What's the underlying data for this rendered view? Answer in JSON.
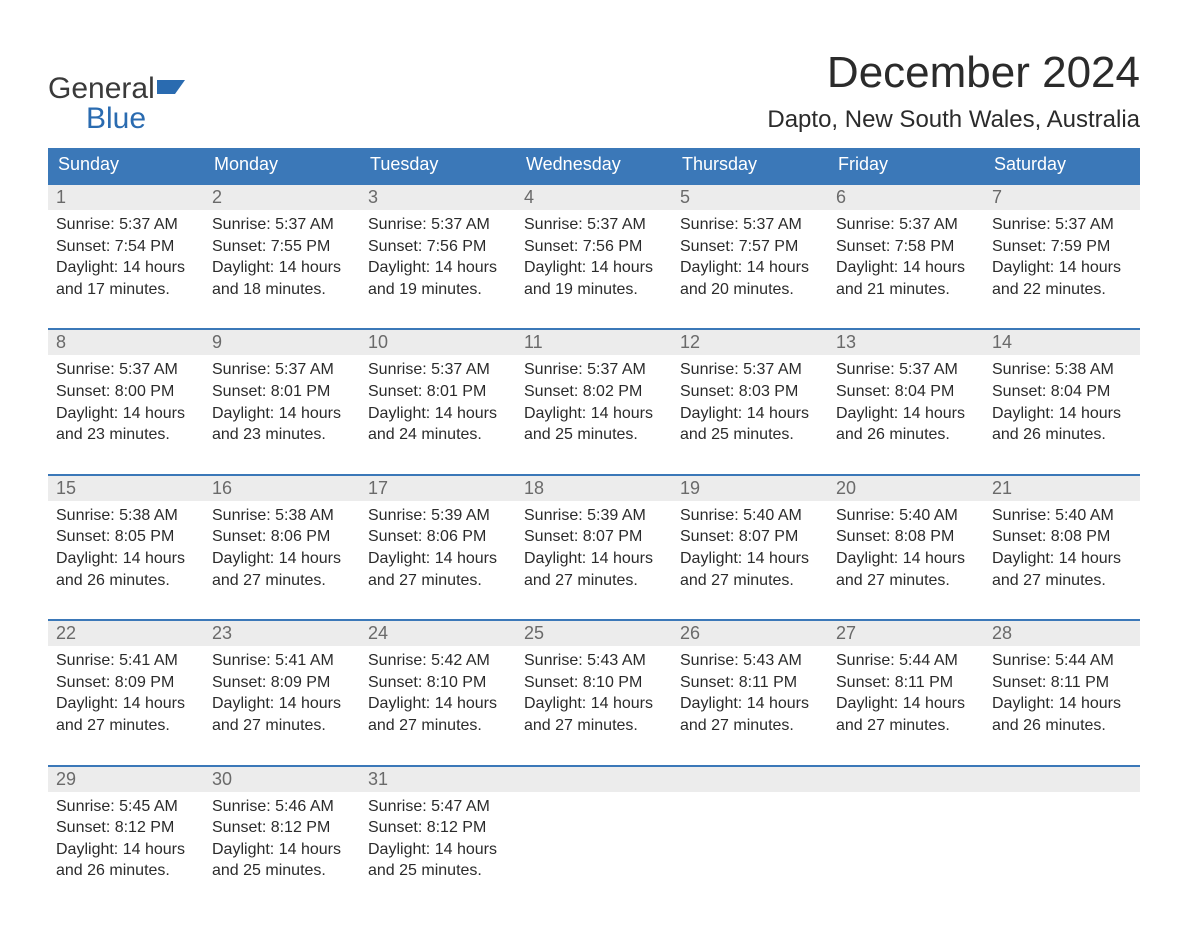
{
  "logo": {
    "word1": "General",
    "word2": "Blue"
  },
  "title": {
    "month": "December 2024",
    "location": "Dapto, New South Wales, Australia"
  },
  "colors": {
    "header_bg": "#3b78b8",
    "header_text": "#ffffff",
    "daynum_bg": "#ececec",
    "daynum_text": "#6a6a6a",
    "body_text": "#2b2b2b",
    "rule": "#3b78b8",
    "logo_blue": "#2a6bb0"
  },
  "layout": {
    "columns": 7,
    "daynum_fontsize": 18,
    "header_fontsize": 18,
    "cell_fontsize": 16,
    "title_fontsize": 44,
    "location_fontsize": 24
  },
  "weekdays": [
    "Sunday",
    "Monday",
    "Tuesday",
    "Wednesday",
    "Thursday",
    "Friday",
    "Saturday"
  ],
  "weeks": [
    [
      {
        "num": "1",
        "sunrise": "Sunrise: 5:37 AM",
        "sunset": "Sunset: 7:54 PM",
        "day1": "Daylight: 14 hours",
        "day2": "and 17 minutes."
      },
      {
        "num": "2",
        "sunrise": "Sunrise: 5:37 AM",
        "sunset": "Sunset: 7:55 PM",
        "day1": "Daylight: 14 hours",
        "day2": "and 18 minutes."
      },
      {
        "num": "3",
        "sunrise": "Sunrise: 5:37 AM",
        "sunset": "Sunset: 7:56 PM",
        "day1": "Daylight: 14 hours",
        "day2": "and 19 minutes."
      },
      {
        "num": "4",
        "sunrise": "Sunrise: 5:37 AM",
        "sunset": "Sunset: 7:56 PM",
        "day1": "Daylight: 14 hours",
        "day2": "and 19 minutes."
      },
      {
        "num": "5",
        "sunrise": "Sunrise: 5:37 AM",
        "sunset": "Sunset: 7:57 PM",
        "day1": "Daylight: 14 hours",
        "day2": "and 20 minutes."
      },
      {
        "num": "6",
        "sunrise": "Sunrise: 5:37 AM",
        "sunset": "Sunset: 7:58 PM",
        "day1": "Daylight: 14 hours",
        "day2": "and 21 minutes."
      },
      {
        "num": "7",
        "sunrise": "Sunrise: 5:37 AM",
        "sunset": "Sunset: 7:59 PM",
        "day1": "Daylight: 14 hours",
        "day2": "and 22 minutes."
      }
    ],
    [
      {
        "num": "8",
        "sunrise": "Sunrise: 5:37 AM",
        "sunset": "Sunset: 8:00 PM",
        "day1": "Daylight: 14 hours",
        "day2": "and 23 minutes."
      },
      {
        "num": "9",
        "sunrise": "Sunrise: 5:37 AM",
        "sunset": "Sunset: 8:01 PM",
        "day1": "Daylight: 14 hours",
        "day2": "and 23 minutes."
      },
      {
        "num": "10",
        "sunrise": "Sunrise: 5:37 AM",
        "sunset": "Sunset: 8:01 PM",
        "day1": "Daylight: 14 hours",
        "day2": "and 24 minutes."
      },
      {
        "num": "11",
        "sunrise": "Sunrise: 5:37 AM",
        "sunset": "Sunset: 8:02 PM",
        "day1": "Daylight: 14 hours",
        "day2": "and 25 minutes."
      },
      {
        "num": "12",
        "sunrise": "Sunrise: 5:37 AM",
        "sunset": "Sunset: 8:03 PM",
        "day1": "Daylight: 14 hours",
        "day2": "and 25 minutes."
      },
      {
        "num": "13",
        "sunrise": "Sunrise: 5:37 AM",
        "sunset": "Sunset: 8:04 PM",
        "day1": "Daylight: 14 hours",
        "day2": "and 26 minutes."
      },
      {
        "num": "14",
        "sunrise": "Sunrise: 5:38 AM",
        "sunset": "Sunset: 8:04 PM",
        "day1": "Daylight: 14 hours",
        "day2": "and 26 minutes."
      }
    ],
    [
      {
        "num": "15",
        "sunrise": "Sunrise: 5:38 AM",
        "sunset": "Sunset: 8:05 PM",
        "day1": "Daylight: 14 hours",
        "day2": "and 26 minutes."
      },
      {
        "num": "16",
        "sunrise": "Sunrise: 5:38 AM",
        "sunset": "Sunset: 8:06 PM",
        "day1": "Daylight: 14 hours",
        "day2": "and 27 minutes."
      },
      {
        "num": "17",
        "sunrise": "Sunrise: 5:39 AM",
        "sunset": "Sunset: 8:06 PM",
        "day1": "Daylight: 14 hours",
        "day2": "and 27 minutes."
      },
      {
        "num": "18",
        "sunrise": "Sunrise: 5:39 AM",
        "sunset": "Sunset: 8:07 PM",
        "day1": "Daylight: 14 hours",
        "day2": "and 27 minutes."
      },
      {
        "num": "19",
        "sunrise": "Sunrise: 5:40 AM",
        "sunset": "Sunset: 8:07 PM",
        "day1": "Daylight: 14 hours",
        "day2": "and 27 minutes."
      },
      {
        "num": "20",
        "sunrise": "Sunrise: 5:40 AM",
        "sunset": "Sunset: 8:08 PM",
        "day1": "Daylight: 14 hours",
        "day2": "and 27 minutes."
      },
      {
        "num": "21",
        "sunrise": "Sunrise: 5:40 AM",
        "sunset": "Sunset: 8:08 PM",
        "day1": "Daylight: 14 hours",
        "day2": "and 27 minutes."
      }
    ],
    [
      {
        "num": "22",
        "sunrise": "Sunrise: 5:41 AM",
        "sunset": "Sunset: 8:09 PM",
        "day1": "Daylight: 14 hours",
        "day2": "and 27 minutes."
      },
      {
        "num": "23",
        "sunrise": "Sunrise: 5:41 AM",
        "sunset": "Sunset: 8:09 PM",
        "day1": "Daylight: 14 hours",
        "day2": "and 27 minutes."
      },
      {
        "num": "24",
        "sunrise": "Sunrise: 5:42 AM",
        "sunset": "Sunset: 8:10 PM",
        "day1": "Daylight: 14 hours",
        "day2": "and 27 minutes."
      },
      {
        "num": "25",
        "sunrise": "Sunrise: 5:43 AM",
        "sunset": "Sunset: 8:10 PM",
        "day1": "Daylight: 14 hours",
        "day2": "and 27 minutes."
      },
      {
        "num": "26",
        "sunrise": "Sunrise: 5:43 AM",
        "sunset": "Sunset: 8:11 PM",
        "day1": "Daylight: 14 hours",
        "day2": "and 27 minutes."
      },
      {
        "num": "27",
        "sunrise": "Sunrise: 5:44 AM",
        "sunset": "Sunset: 8:11 PM",
        "day1": "Daylight: 14 hours",
        "day2": "and 27 minutes."
      },
      {
        "num": "28",
        "sunrise": "Sunrise: 5:44 AM",
        "sunset": "Sunset: 8:11 PM",
        "day1": "Daylight: 14 hours",
        "day2": "and 26 minutes."
      }
    ],
    [
      {
        "num": "29",
        "sunrise": "Sunrise: 5:45 AM",
        "sunset": "Sunset: 8:12 PM",
        "day1": "Daylight: 14 hours",
        "day2": "and 26 minutes."
      },
      {
        "num": "30",
        "sunrise": "Sunrise: 5:46 AM",
        "sunset": "Sunset: 8:12 PM",
        "day1": "Daylight: 14 hours",
        "day2": "and 25 minutes."
      },
      {
        "num": "31",
        "sunrise": "Sunrise: 5:47 AM",
        "sunset": "Sunset: 8:12 PM",
        "day1": "Daylight: 14 hours",
        "day2": "and 25 minutes."
      },
      {
        "num": "",
        "sunrise": "",
        "sunset": "",
        "day1": "",
        "day2": ""
      },
      {
        "num": "",
        "sunrise": "",
        "sunset": "",
        "day1": "",
        "day2": ""
      },
      {
        "num": "",
        "sunrise": "",
        "sunset": "",
        "day1": "",
        "day2": ""
      },
      {
        "num": "",
        "sunrise": "",
        "sunset": "",
        "day1": "",
        "day2": ""
      }
    ]
  ]
}
